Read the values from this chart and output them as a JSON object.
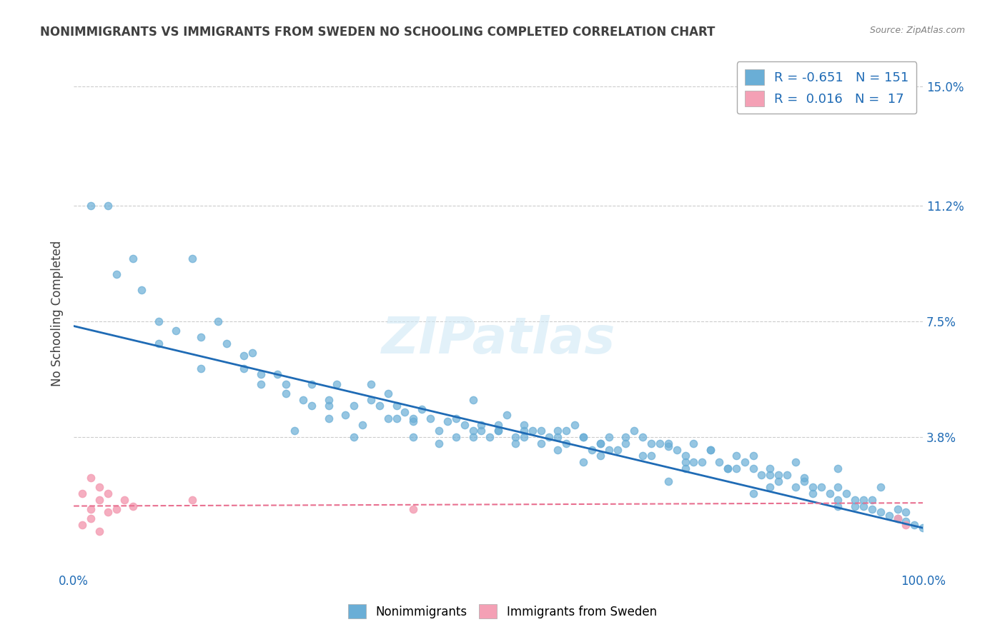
{
  "title": "NONIMMIGRANTS VS IMMIGRANTS FROM SWEDEN NO SCHOOLING COMPLETED CORRELATION CHART",
  "source": "Source: ZipAtlas.com",
  "ylabel": "No Schooling Completed",
  "xlabel": "",
  "x_tick_labels": [
    "0.0%",
    "100.0%"
  ],
  "y_tick_labels": [
    "3.8%",
    "7.5%",
    "11.2%",
    "15.0%"
  ],
  "y_tick_values": [
    0.038,
    0.075,
    0.112,
    0.15
  ],
  "xlim": [
    0.0,
    1.0
  ],
  "ylim": [
    -0.005,
    0.16
  ],
  "watermark": "ZIPatlas",
  "legend_r1": "R = -0.651",
  "legend_n1": "N = 151",
  "legend_r2": "R =  0.016",
  "legend_n2": "N =  17",
  "blue_color": "#6aaed6",
  "pink_color": "#f4a0b5",
  "line_blue": "#1f6bb5",
  "line_pink": "#e87090",
  "title_color": "#404040",
  "source_color": "#808080",
  "axis_label_color": "#1f6bb5",
  "nonimmigrants_x": [
    0.02,
    0.04,
    0.05,
    0.07,
    0.08,
    0.1,
    0.12,
    0.14,
    0.15,
    0.17,
    0.18,
    0.2,
    0.21,
    0.22,
    0.24,
    0.25,
    0.27,
    0.28,
    0.28,
    0.3,
    0.31,
    0.32,
    0.33,
    0.34,
    0.35,
    0.36,
    0.37,
    0.38,
    0.39,
    0.4,
    0.41,
    0.42,
    0.43,
    0.44,
    0.45,
    0.46,
    0.47,
    0.48,
    0.49,
    0.5,
    0.51,
    0.52,
    0.53,
    0.54,
    0.55,
    0.56,
    0.57,
    0.58,
    0.59,
    0.6,
    0.61,
    0.62,
    0.63,
    0.64,
    0.65,
    0.66,
    0.67,
    0.68,
    0.69,
    0.7,
    0.71,
    0.72,
    0.73,
    0.74,
    0.75,
    0.76,
    0.77,
    0.78,
    0.79,
    0.8,
    0.81,
    0.82,
    0.83,
    0.84,
    0.85,
    0.86,
    0.87,
    0.88,
    0.89,
    0.9,
    0.91,
    0.92,
    0.93,
    0.94,
    0.95,
    0.96,
    0.97,
    0.98,
    0.99,
    1.0,
    0.25,
    0.3,
    0.35,
    0.4,
    0.45,
    0.5,
    0.55,
    0.6,
    0.65,
    0.7,
    0.75,
    0.8,
    0.85,
    0.9,
    0.95,
    0.22,
    0.26,
    0.38,
    0.48,
    0.53,
    0.58,
    0.62,
    0.68,
    0.72,
    0.78,
    0.82,
    0.86,
    0.9,
    0.94,
    0.98,
    0.1,
    0.15,
    0.2,
    0.3,
    0.4,
    0.5,
    0.6,
    0.7,
    0.8,
    0.9,
    0.33,
    0.43,
    0.53,
    0.63,
    0.73,
    0.83,
    0.93,
    0.47,
    0.57,
    0.67,
    0.77,
    0.87,
    0.97,
    0.52,
    0.62,
    0.72,
    0.82,
    0.92,
    0.37,
    0.47,
    0.57
  ],
  "nonimmigrants_y": [
    0.112,
    0.112,
    0.09,
    0.095,
    0.085,
    0.075,
    0.072,
    0.095,
    0.07,
    0.075,
    0.068,
    0.06,
    0.065,
    0.055,
    0.058,
    0.052,
    0.05,
    0.048,
    0.055,
    0.05,
    0.055,
    0.045,
    0.048,
    0.042,
    0.055,
    0.048,
    0.052,
    0.044,
    0.046,
    0.043,
    0.047,
    0.044,
    0.04,
    0.043,
    0.038,
    0.042,
    0.05,
    0.042,
    0.038,
    0.04,
    0.045,
    0.038,
    0.042,
    0.04,
    0.036,
    0.038,
    0.04,
    0.036,
    0.042,
    0.038,
    0.034,
    0.036,
    0.038,
    0.034,
    0.036,
    0.04,
    0.038,
    0.032,
    0.036,
    0.035,
    0.034,
    0.032,
    0.036,
    0.03,
    0.034,
    0.03,
    0.028,
    0.032,
    0.03,
    0.028,
    0.026,
    0.028,
    0.024,
    0.026,
    0.022,
    0.024,
    0.02,
    0.022,
    0.02,
    0.018,
    0.02,
    0.018,
    0.016,
    0.015,
    0.014,
    0.013,
    0.012,
    0.011,
    0.01,
    0.009,
    0.055,
    0.048,
    0.05,
    0.044,
    0.044,
    0.042,
    0.04,
    0.038,
    0.038,
    0.036,
    0.034,
    0.032,
    0.03,
    0.028,
    0.022,
    0.058,
    0.04,
    0.048,
    0.04,
    0.038,
    0.04,
    0.036,
    0.036,
    0.03,
    0.028,
    0.026,
    0.025,
    0.022,
    0.018,
    0.014,
    0.068,
    0.06,
    0.064,
    0.044,
    0.038,
    0.04,
    0.03,
    0.024,
    0.02,
    0.016,
    0.038,
    0.036,
    0.04,
    0.034,
    0.03,
    0.026,
    0.018,
    0.038,
    0.034,
    0.032,
    0.028,
    0.022,
    0.015,
    0.036,
    0.032,
    0.028,
    0.022,
    0.016,
    0.044,
    0.04,
    0.038
  ],
  "immigrants_x": [
    0.01,
    0.01,
    0.02,
    0.02,
    0.02,
    0.03,
    0.03,
    0.03,
    0.04,
    0.04,
    0.05,
    0.06,
    0.07,
    0.14,
    0.4,
    0.97,
    0.98
  ],
  "immigrants_y": [
    0.02,
    0.01,
    0.025,
    0.015,
    0.012,
    0.022,
    0.018,
    0.008,
    0.02,
    0.014,
    0.015,
    0.018,
    0.016,
    0.018,
    0.015,
    0.012,
    0.01
  ],
  "blue_trend_x0": 0.0,
  "blue_trend_y0": 0.0735,
  "blue_trend_x1": 1.0,
  "blue_trend_y1": 0.009,
  "pink_trend_x0": 0.0,
  "pink_trend_y0": 0.016,
  "pink_trend_x1": 1.0,
  "pink_trend_y1": 0.017
}
